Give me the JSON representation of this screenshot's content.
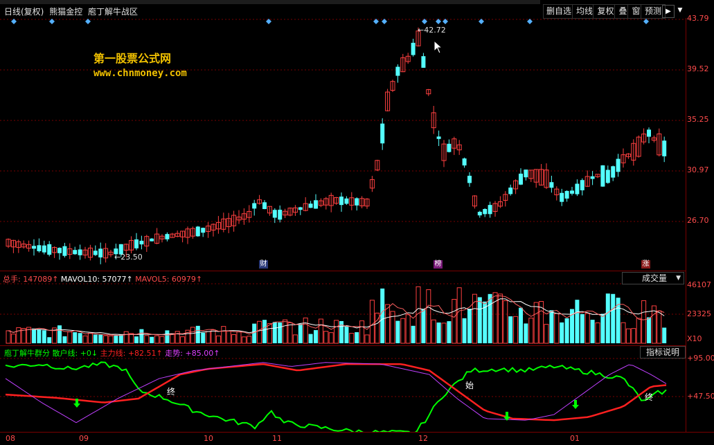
{
  "toolbar": {
    "period": "日线(复权)",
    "stock": "熊猫金控",
    "formula": "庖丁解牛战区",
    "buttons": [
      "删自选",
      "均线",
      "复权",
      "叠",
      "窗",
      "预测"
    ]
  },
  "watermark": {
    "line1": "第一股票公式网",
    "line2": "www.chnmoney.com"
  },
  "price_axis": [
    "43.79",
    "39.52",
    "35.25",
    "30.97",
    "26.70"
  ],
  "price_annotations": {
    "high": "42.72",
    "low": "23.50"
  },
  "event_markers": [
    "财",
    "榜",
    "涨"
  ],
  "volume_panel": {
    "legend": [
      {
        "text": "总手: 147089↑",
        "color": "#ff4b4b"
      },
      {
        "text": "MAVOL10: 57077↑",
        "color": "#ffffff"
      },
      {
        "text": "MAVOL5: 60979↑",
        "color": "#ff4b4b"
      }
    ],
    "selector": "成交量",
    "axis": [
      "46107",
      "23325"
    ],
    "unit": "X10"
  },
  "indicator_panel": {
    "legend": [
      {
        "text": "庖丁解牛群分",
        "color": "#00ff00"
      },
      {
        "text": "散户线: +0↓",
        "color": "#00ff00"
      },
      {
        "text": "主力线: +82.51↑",
        "color": "#ff2020"
      },
      {
        "text": "走势: +85.00↑",
        "color": "#e040ff"
      }
    ],
    "help_button": "指标说明",
    "axis": [
      "+95.00",
      "+47.50"
    ],
    "labels": {
      "end1": "终",
      "start": "始",
      "end2": "终"
    }
  },
  "x_axis": [
    "08",
    "09",
    "10",
    "11",
    "12",
    "01"
  ],
  "colors": {
    "up": "#ff4040",
    "down": "#54ffff",
    "grid": "#7a0000",
    "axis_text": "#ff4b4b"
  }
}
